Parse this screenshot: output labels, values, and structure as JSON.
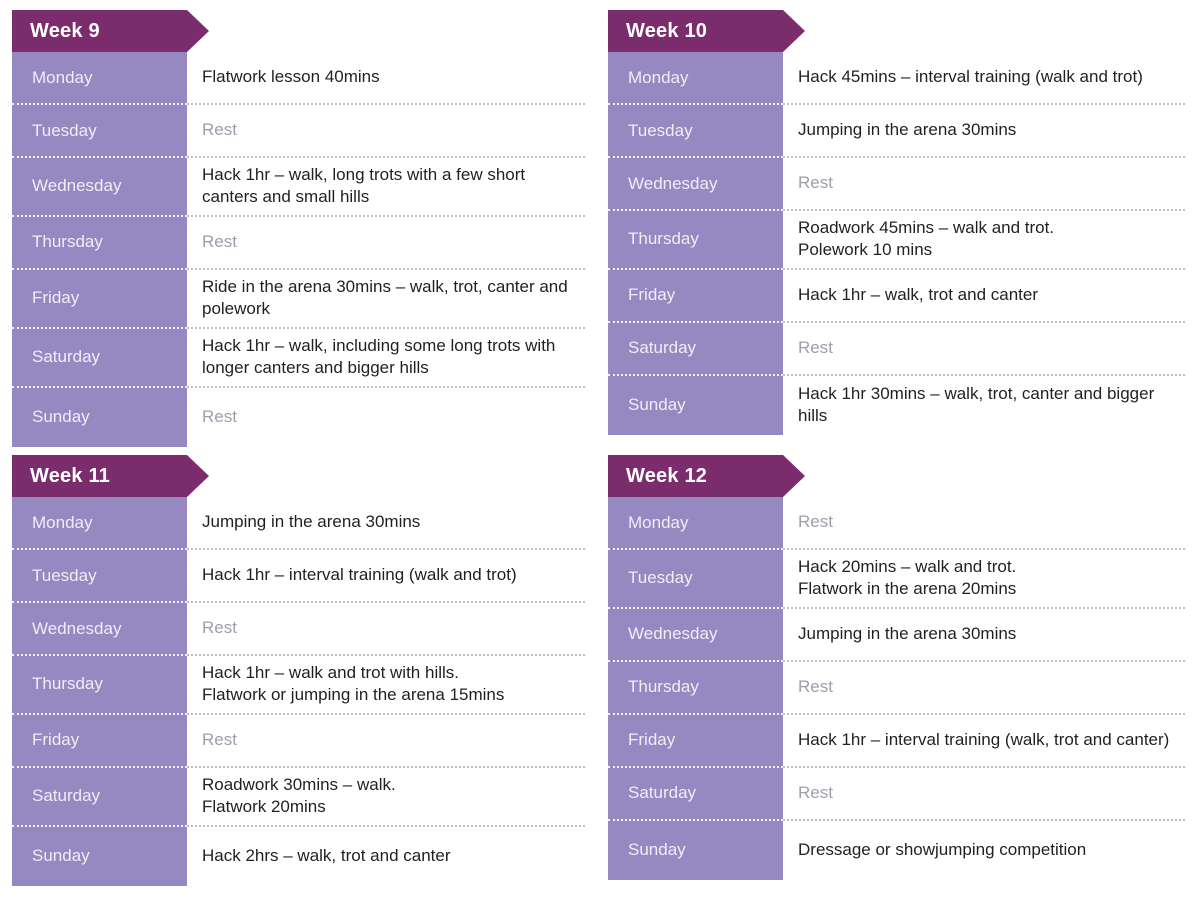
{
  "colors": {
    "ribbon": "#7b2c6d",
    "day_cell": "#9689c1",
    "day_text": "#f1ecf6",
    "activity_text": "#231f20",
    "rest_text": "#a29cab",
    "separator_light": "#ffffff",
    "separator_gray": "#bfbdbe"
  },
  "weeks": [
    {
      "label": "Week 9",
      "days": [
        {
          "day": "Monday",
          "activity": "Flatwork lesson 40mins",
          "rest": false
        },
        {
          "day": "Tuesday",
          "activity": "Rest",
          "rest": true
        },
        {
          "day": "Wednesday",
          "activity": "Hack 1hr – walk, long trots with a few short canters and small hills",
          "rest": false
        },
        {
          "day": "Thursday",
          "activity": "Rest",
          "rest": true
        },
        {
          "day": "Friday",
          "activity": "Ride in the arena 30mins – walk, trot, canter and polework",
          "rest": false
        },
        {
          "day": "Saturday",
          "activity": "Hack 1hr – walk, including some long trots with longer canters and bigger hills",
          "rest": false
        },
        {
          "day": "Sunday",
          "activity": "Rest",
          "rest": true
        }
      ]
    },
    {
      "label": "Week 10",
      "days": [
        {
          "day": "Monday",
          "activity": "Hack 45mins – interval training (walk and trot)",
          "rest": false
        },
        {
          "day": "Tuesday",
          "activity": "Jumping in the arena 30mins",
          "rest": false
        },
        {
          "day": "Wednesday",
          "activity": "Rest",
          "rest": true
        },
        {
          "day": "Thursday",
          "activity": "Roadwork 45mins – walk and trot.\nPolework 10 mins",
          "rest": false
        },
        {
          "day": "Friday",
          "activity": "Hack 1hr – walk, trot and canter",
          "rest": false
        },
        {
          "day": "Saturday",
          "activity": "Rest",
          "rest": true
        },
        {
          "day": "Sunday",
          "activity": "Hack 1hr 30mins – walk, trot, canter and bigger hills",
          "rest": false
        }
      ]
    },
    {
      "label": "Week 11",
      "days": [
        {
          "day": "Monday",
          "activity": "Jumping in the arena 30mins",
          "rest": false
        },
        {
          "day": "Tuesday",
          "activity": "Hack 1hr – interval training (walk and trot)",
          "rest": false
        },
        {
          "day": "Wednesday",
          "activity": "Rest",
          "rest": true
        },
        {
          "day": "Thursday",
          "activity": "Hack 1hr – walk and trot with hills.\nFlatwork or jumping in the arena 15mins",
          "rest": false
        },
        {
          "day": "Friday",
          "activity": "Rest",
          "rest": true
        },
        {
          "day": "Saturday",
          "activity": "Roadwork 30mins – walk.\nFlatwork 20mins",
          "rest": false
        },
        {
          "day": "Sunday",
          "activity": "Hack 2hrs – walk, trot and canter",
          "rest": false
        }
      ]
    },
    {
      "label": "Week 12",
      "days": [
        {
          "day": "Monday",
          "activity": "Rest",
          "rest": true
        },
        {
          "day": "Tuesday",
          "activity": "Hack 20mins – walk and trot.\nFlatwork in the arena 20mins",
          "rest": false
        },
        {
          "day": "Wednesday",
          "activity": "Jumping in the arena 30mins",
          "rest": false
        },
        {
          "day": "Thursday",
          "activity": "Rest",
          "rest": true
        },
        {
          "day": "Friday",
          "activity": "Hack 1hr – interval training (walk, trot and canter)",
          "rest": false
        },
        {
          "day": "Saturday",
          "activity": "Rest",
          "rest": true
        },
        {
          "day": "Sunday",
          "activity": "Dressage or showjumping competition",
          "rest": false
        }
      ]
    }
  ]
}
